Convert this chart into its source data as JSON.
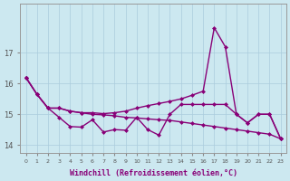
{
  "xlabel": "Windchill (Refroidissement éolien,°C)",
  "bg_color": "#cce8f0",
  "grid_color": "#aaccdd",
  "line_color": "#880077",
  "ylim": [
    13.75,
    18.6
  ],
  "yticks": [
    14,
    15,
    16,
    17
  ],
  "x_all": [
    0,
    1,
    2,
    3,
    4,
    5,
    6,
    7,
    8,
    9,
    10,
    11,
    12,
    13,
    14,
    15,
    16,
    17,
    18,
    19,
    20,
    21,
    22,
    23
  ],
  "series_declining": [
    16.2,
    15.65,
    15.2,
    15.2,
    15.1,
    15.05,
    15.0,
    14.98,
    14.95,
    14.9,
    14.88,
    14.85,
    14.82,
    14.8,
    14.75,
    14.7,
    14.65,
    14.6,
    14.55,
    14.5,
    14.45,
    14.4,
    14.35,
    14.2
  ],
  "series_jagged": [
    16.2,
    15.65,
    15.2,
    14.9,
    14.6,
    14.58,
    14.82,
    14.42,
    14.5,
    14.48,
    14.9,
    14.5,
    14.32,
    15.0,
    15.32,
    15.32,
    15.32,
    15.32,
    15.32,
    15.0,
    14.72,
    15.0,
    15.0,
    14.2
  ],
  "series_rising": [
    16.2,
    15.65,
    15.2,
    15.2,
    15.1,
    15.05,
    15.05,
    15.02,
    15.05,
    15.1,
    15.2,
    15.28,
    15.35,
    15.42,
    15.5,
    15.62,
    15.75,
    17.82,
    17.2,
    15.0,
    14.72,
    15.0,
    15.0,
    14.2
  ],
  "lw": 1.0,
  "ms": 2.5
}
